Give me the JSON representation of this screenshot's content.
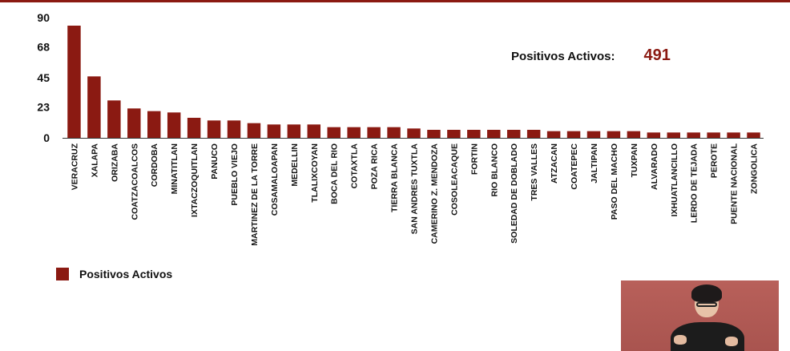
{
  "kpi": {
    "label": "Positivos Activos:",
    "value": "491"
  },
  "legend": {
    "label": "Positivos Activos"
  },
  "colors": {
    "bar": "#8b1a12",
    "accent": "#8b1a12"
  },
  "chart_data": {
    "type": "bar",
    "title": "",
    "xlabel": "",
    "ylabel": "",
    "ylim": [
      0,
      90
    ],
    "yticks": [
      "90",
      "68",
      "45",
      "23",
      "0"
    ],
    "grid": false,
    "legend_position": "bottom-left",
    "categories": [
      "VERACRUZ",
      "XALAPA",
      "ORIZABA",
      "COATZACOALCOS",
      "CORDOBA",
      "MINATITLAN",
      "IXTACZOQUITLAN",
      "PANUCO",
      "PUEBLO VIEJO",
      "MARTINEZ DE LA TORRE",
      "COSAMALOAPAN",
      "MEDELLIN",
      "TLALIXCOYAN",
      "BOCA DEL RIO",
      "COTAXTLA",
      "POZA RICA",
      "TIERRA BLANCA",
      "SAN ANDRES TUXTLA",
      "CAMERINO Z. MENDOZA",
      "COSOLEACAQUE",
      "FORTIN",
      "RIO BLANCO",
      "SOLEDAD DE DOBLADO",
      "TRES VALLES",
      "ATZACAN",
      "COATEPEC",
      "JALTIPAN",
      "PASO DEL MACHO",
      "TUXPAN",
      "ALVARADO",
      "IXHUATLANCILLO",
      "LERDO DE TEJADA",
      "PEROTE",
      "PUENTE NACIONAL",
      "ZONGOLICA"
    ],
    "series": [
      {
        "name": "Positivos Activos",
        "values": [
          84,
          46,
          28,
          22,
          20,
          19,
          15,
          13,
          13,
          11,
          10,
          10,
          10,
          8,
          8,
          8,
          8,
          7,
          6,
          6,
          6,
          6,
          6,
          6,
          5,
          5,
          5,
          5,
          5,
          4,
          4,
          4,
          4,
          4,
          4
        ]
      }
    ]
  }
}
